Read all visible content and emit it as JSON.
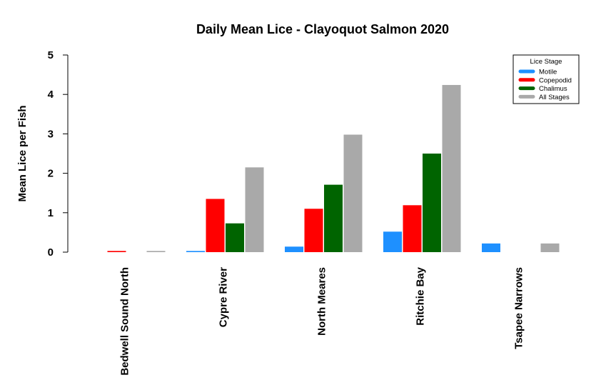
{
  "chart_data": {
    "type": "bar",
    "title": "Daily Mean Lice - Clayoquot Salmon 2020",
    "xlabel": "",
    "ylabel": "Mean Lice per Fish",
    "ylim": [
      0,
      5
    ],
    "yticks": [
      "0",
      "1",
      "2",
      "3",
      "4",
      "5"
    ],
    "categories": [
      "Bedwell Sound North",
      "Cypre River",
      "North Meares",
      "Ritchie Bay",
      "Tsapee Narrows"
    ],
    "series": [
      {
        "name": "Motile",
        "color": "#1e90ff",
        "values": [
          0,
          0.03,
          0.14,
          0.52,
          0.22
        ]
      },
      {
        "name": "Copepodid",
        "color": "#ff0000",
        "values": [
          0.03,
          1.35,
          1.1,
          1.19,
          0
        ]
      },
      {
        "name": "Chalimus",
        "color": "#006400",
        "values": [
          0,
          0.73,
          1.71,
          2.5,
          0
        ]
      },
      {
        "name": "All Stages",
        "color": "#a9a9a9",
        "values": [
          0.03,
          2.15,
          2.98,
          4.24,
          0.22
        ]
      }
    ],
    "legend": {
      "title": "Lice Stage",
      "position": "top-right"
    },
    "grid": false
  }
}
